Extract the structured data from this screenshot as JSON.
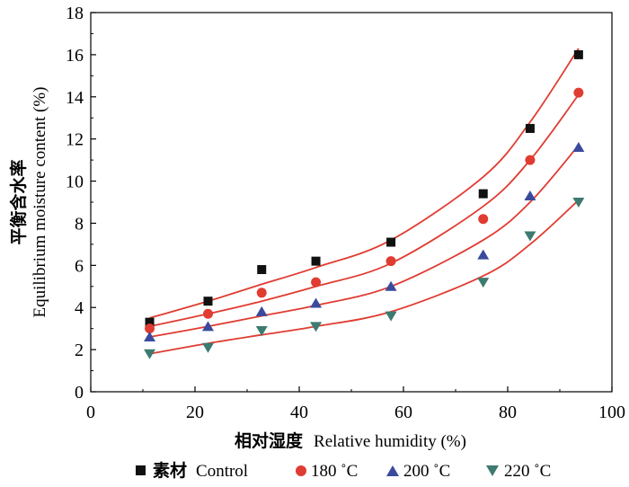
{
  "chart_data": {
    "type": "scatter",
    "xlabel_cn": "相对湿度",
    "xlabel_en": "Relative humidity (%)",
    "ylabel_cn": "平衡含水率",
    "ylabel_en": "Equilibrium moisture content (%)",
    "xlim": [
      0,
      100
    ],
    "ylim": [
      0,
      18
    ],
    "xticks": [
      0,
      20,
      40,
      60,
      80,
      100
    ],
    "yticks": [
      0,
      2,
      4,
      6,
      8,
      10,
      12,
      14,
      16,
      18
    ],
    "grid": false,
    "legend_position": "bottom",
    "fit_curve_color": "#e03c31",
    "series": [
      {
        "name_cn": "素材",
        "name_en": "Control",
        "marker": "square",
        "color": "#111111",
        "x": [
          11.3,
          22.5,
          32.8,
          43.2,
          57.6,
          75.3,
          84.3,
          93.6
        ],
        "y": [
          3.3,
          4.3,
          5.8,
          6.2,
          7.1,
          9.4,
          12.5,
          16.0
        ],
        "fit_y": [
          3.5,
          4.3,
          5.1,
          5.9,
          7.2,
          10.2,
          12.8,
          16.3
        ]
      },
      {
        "name_en": "180 ˚C",
        "marker": "circle",
        "color": "#e03c31",
        "x": [
          11.3,
          22.5,
          32.8,
          43.2,
          57.6,
          75.3,
          84.3,
          93.6
        ],
        "y": [
          3.0,
          3.7,
          4.7,
          5.2,
          6.2,
          8.2,
          11.0,
          14.2
        ],
        "fit_y": [
          3.1,
          3.7,
          4.3,
          5.0,
          6.1,
          8.8,
          11.0,
          14.1
        ]
      },
      {
        "name_en": "200 ˚C",
        "marker": "triangle-up",
        "color": "#3a4a9c",
        "x": [
          11.3,
          22.5,
          32.8,
          43.2,
          57.6,
          75.3,
          84.3,
          93.6
        ],
        "y": [
          2.6,
          3.1,
          3.8,
          4.2,
          5.0,
          6.5,
          9.3,
          11.6
        ],
        "fit_y": [
          2.6,
          3.1,
          3.6,
          4.1,
          5.0,
          7.2,
          9.0,
          11.7
        ]
      },
      {
        "name_en": "220 ˚C",
        "marker": "triangle-down",
        "color": "#3d7a70",
        "x": [
          11.3,
          22.5,
          32.8,
          43.2,
          57.6,
          75.3,
          84.3,
          93.6
        ],
        "y": [
          1.8,
          2.1,
          2.9,
          3.1,
          3.6,
          5.2,
          7.4,
          9.0
        ],
        "fit_y": [
          1.8,
          2.3,
          2.7,
          3.1,
          3.8,
          5.5,
          7.0,
          9.1
        ]
      }
    ]
  }
}
